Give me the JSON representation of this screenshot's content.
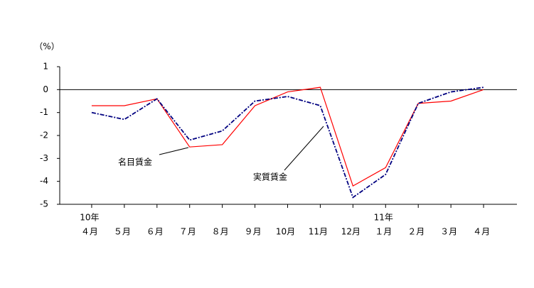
{
  "chart_data": {
    "type": "line",
    "y_unit_label": "（%）",
    "categories": [
      "４月",
      "５月",
      "６月",
      "７月",
      "８月",
      "９月",
      "10月",
      "11月",
      "12月",
      "１月",
      "２月",
      "３月",
      "４月"
    ],
    "category_years": [
      "10年",
      null,
      null,
      null,
      null,
      null,
      null,
      null,
      null,
      "11年",
      null,
      null,
      null
    ],
    "series": [
      {
        "name": "名目賃金",
        "color": "#ff0000",
        "dash": "none",
        "values": [
          -0.7,
          -0.7,
          -0.4,
          -2.5,
          -2.4,
          -0.7,
          -0.1,
          0.1,
          -4.2,
          -3.4,
          -0.6,
          -0.5,
          0.0
        ]
      },
      {
        "name": "実質賃金",
        "color": "#000080",
        "dash": "6 2 2 2",
        "values": [
          -1.0,
          -1.3,
          -0.4,
          -2.2,
          -1.8,
          -0.5,
          -0.3,
          -0.7,
          -4.7,
          -3.7,
          -0.6,
          -0.1,
          0.1
        ]
      }
    ],
    "ylim": [
      -5,
      1
    ],
    "yticks": [
      1,
      0,
      -1,
      -2,
      -3,
      -4,
      -5
    ],
    "grid": false
  }
}
